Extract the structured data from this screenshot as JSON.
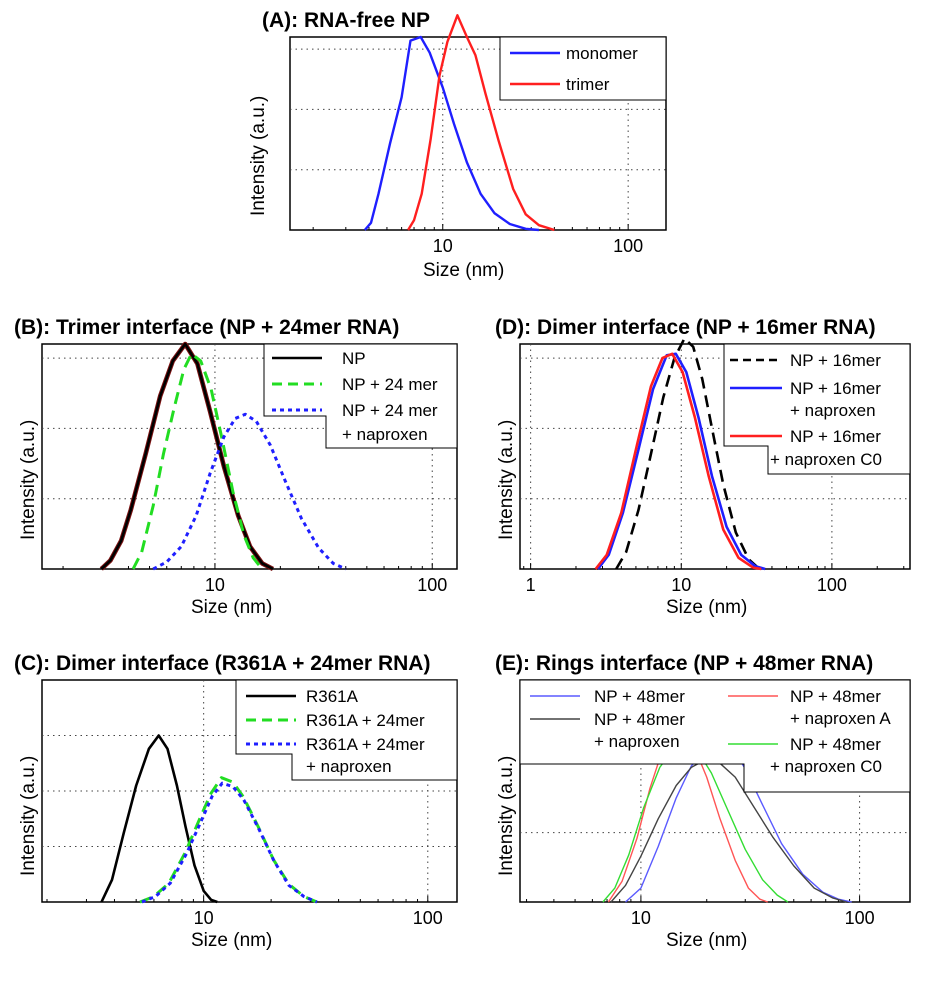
{
  "chart_data": [
    {
      "id": "A",
      "type": "line",
      "title": "(A): RNA-free NP",
      "xlabel": "Size (nm)",
      "ylabel": "Intensity (a.u.)",
      "xscale": "log",
      "xlim": [
        1.5,
        160
      ],
      "ylim": [
        0,
        1.6
      ],
      "xticks": [
        10,
        100
      ],
      "yticks": [
        0.5,
        1.0,
        1.5
      ],
      "legend": "top-right",
      "series": [
        {
          "name": "monomer",
          "color": "#1f1fff",
          "dash": "solid",
          "width": 2.4,
          "points": [
            [
              3.8,
              0
            ],
            [
              4.1,
              0.06
            ],
            [
              4.5,
              0.3
            ],
            [
              5.2,
              0.72
            ],
            [
              6.0,
              1.1
            ],
            [
              6.7,
              1.57
            ],
            [
              7.6,
              1.6
            ],
            [
              8.5,
              1.47
            ],
            [
              10,
              1.18
            ],
            [
              11.5,
              0.88
            ],
            [
              13.5,
              0.56
            ],
            [
              16,
              0.3
            ],
            [
              19,
              0.14
            ],
            [
              23,
              0.05
            ],
            [
              28,
              0.01
            ],
            [
              33,
              0
            ]
          ]
        },
        {
          "name": "trimer",
          "color": "#ff1f1f",
          "dash": "solid",
          "width": 2.4,
          "points": [
            [
              6.5,
              0
            ],
            [
              7.0,
              0.08
            ],
            [
              7.7,
              0.3
            ],
            [
              8.6,
              0.75
            ],
            [
              9.6,
              1.28
            ],
            [
              10.6,
              1.56
            ],
            [
              12,
              1.78
            ],
            [
              13.5,
              1.6
            ],
            [
              15,
              1.45
            ],
            [
              17,
              1.13
            ],
            [
              20,
              0.74
            ],
            [
              24,
              0.34
            ],
            [
              28,
              0.13
            ],
            [
              33,
              0.04
            ],
            [
              40,
              0
            ]
          ]
        }
      ]
    },
    {
      "id": "B",
      "type": "line",
      "title": "(B): Trimer interface (NP + 24mer RNA)",
      "xlabel": "Size (nm)",
      "ylabel": "Intensity (a.u.)",
      "xscale": "log",
      "xlim": [
        1.6,
        130
      ],
      "ylim": [
        0,
        1.6
      ],
      "xticks": [
        10,
        100
      ],
      "yticks": [
        0.5,
        1.0,
        1.5
      ],
      "legend": "top-right",
      "series": [
        {
          "name": "NP",
          "color": "#000000",
          "outline": "#7a1010",
          "dash": "solid",
          "width": 2.6,
          "points": [
            [
              3.0,
              0
            ],
            [
              3.3,
              0.06
            ],
            [
              3.7,
              0.2
            ],
            [
              4.1,
              0.42
            ],
            [
              4.8,
              0.82
            ],
            [
              5.6,
              1.23
            ],
            [
              6.4,
              1.48
            ],
            [
              7.3,
              1.6
            ],
            [
              8.3,
              1.46
            ],
            [
              9.5,
              1.12
            ],
            [
              11,
              0.73
            ],
            [
              12.8,
              0.38
            ],
            [
              14.5,
              0.16
            ],
            [
              16.5,
              0.04
            ],
            [
              18.5,
              0
            ]
          ]
        },
        {
          "name": "NP + 24 mer",
          "color": "#22dd22",
          "dash": "dashed",
          "width": 3,
          "points": [
            [
              4.2,
              0
            ],
            [
              4.6,
              0.12
            ],
            [
              5.2,
              0.45
            ],
            [
              5.8,
              0.82
            ],
            [
              6.5,
              1.15
            ],
            [
              7.2,
              1.42
            ],
            [
              7.8,
              1.53
            ],
            [
              8.6,
              1.48
            ],
            [
              9.6,
              1.28
            ],
            [
              10.8,
              0.92
            ],
            [
              12.1,
              0.55
            ],
            [
              13.6,
              0.24
            ],
            [
              15,
              0.08
            ],
            [
              16.5,
              0
            ]
          ]
        },
        {
          "name": "NP + 24 mer + naproxen",
          "color": "#1f1fff",
          "dash": "dotted",
          "width": 3,
          "points": [
            [
              5.2,
              0
            ],
            [
              6,
              0.05
            ],
            [
              7,
              0.16
            ],
            [
              8.2,
              0.38
            ],
            [
              9.5,
              0.68
            ],
            [
              11,
              0.94
            ],
            [
              12.4,
              1.07
            ],
            [
              13.8,
              1.1
            ],
            [
              15.5,
              1.05
            ],
            [
              18,
              0.88
            ],
            [
              21,
              0.63
            ],
            [
              25,
              0.36
            ],
            [
              30,
              0.15
            ],
            [
              35,
              0.04
            ],
            [
              40,
              0
            ]
          ]
        }
      ]
    },
    {
      "id": "D",
      "type": "line",
      "title": "(D): Dimer interface (NP + 16mer RNA)",
      "xlabel": "Size (nm)",
      "ylabel": "Intensity (a.u.)",
      "xscale": "log",
      "xlim": [
        0.85,
        330
      ],
      "ylim": [
        0,
        1.6
      ],
      "xticks": [
        1,
        10,
        100
      ],
      "yticks": [
        0.5,
        1.0,
        1.5
      ],
      "legend": "top-right",
      "series": [
        {
          "name": "NP + 16mer",
          "color": "#000000",
          "dash": "dashed",
          "width": 2.6,
          "points": [
            [
              3.7,
              0
            ],
            [
              4.3,
              0.12
            ],
            [
              5.2,
              0.42
            ],
            [
              6.3,
              0.82
            ],
            [
              7.6,
              1.22
            ],
            [
              9.0,
              1.5
            ],
            [
              10.5,
              1.64
            ],
            [
              12,
              1.58
            ],
            [
              13.8,
              1.35
            ],
            [
              16,
              1
            ],
            [
              19,
              0.6
            ],
            [
              23,
              0.26
            ],
            [
              28,
              0.07
            ],
            [
              33,
              0
            ]
          ]
        },
        {
          "name": "NP + 16mer + naproxen",
          "color": "#1f1fff",
          "dash": "solid",
          "width": 2.6,
          "points": [
            [
              2.8,
              0
            ],
            [
              3.3,
              0.1
            ],
            [
              4.1,
              0.4
            ],
            [
              5.2,
              0.85
            ],
            [
              6.5,
              1.28
            ],
            [
              8.0,
              1.52
            ],
            [
              9.2,
              1.53
            ],
            [
              10.8,
              1.4
            ],
            [
              13,
              1.08
            ],
            [
              16,
              0.66
            ],
            [
              20,
              0.3
            ],
            [
              25,
              0.1
            ],
            [
              31,
              0.02
            ],
            [
              36,
              0
            ]
          ]
        },
        {
          "name": "NP + 16mer + naproxen C0",
          "color": "#ff1f1f",
          "dash": "solid",
          "width": 2.6,
          "points": [
            [
              2.7,
              0
            ],
            [
              3.2,
              0.1
            ],
            [
              4.0,
              0.4
            ],
            [
              5.0,
              0.85
            ],
            [
              6.3,
              1.3
            ],
            [
              7.5,
              1.5
            ],
            [
              8.7,
              1.53
            ],
            [
              10.2,
              1.4
            ],
            [
              12.3,
              1.08
            ],
            [
              15.2,
              0.66
            ],
            [
              19,
              0.28
            ],
            [
              24,
              0.08
            ],
            [
              30,
              0.01
            ],
            [
              34,
              0
            ]
          ]
        }
      ]
    },
    {
      "id": "C",
      "type": "line",
      "title": "(C): Dimer interface (R361A + 24mer RNA)",
      "xlabel": "Size (nm)",
      "ylabel": "Intensity (a.u.)",
      "xscale": "log",
      "xlim": [
        1.9,
        135
      ],
      "ylim": [
        0,
        2.0
      ],
      "xticks": [
        10,
        100
      ],
      "yticks": [
        0.5,
        1.0,
        1.5
      ],
      "legend": "top-right",
      "series": [
        {
          "name": "R361A",
          "color": "#000000",
          "dash": "solid",
          "width": 2.6,
          "points": [
            [
              3.5,
              0
            ],
            [
              3.9,
              0.2
            ],
            [
              4.4,
              0.62
            ],
            [
              5.0,
              1.05
            ],
            [
              5.7,
              1.38
            ],
            [
              6.3,
              1.5
            ],
            [
              6.9,
              1.38
            ],
            [
              7.6,
              1.05
            ],
            [
              8.3,
              0.68
            ],
            [
              9.1,
              0.33
            ],
            [
              10,
              0.1
            ],
            [
              10.8,
              0.02
            ],
            [
              11.5,
              0
            ]
          ]
        },
        {
          "name": "R361A + 24mer",
          "color": "#22dd22",
          "dash": "dashed",
          "width": 3,
          "points": [
            [
              5.2,
              0
            ],
            [
              6,
              0.05
            ],
            [
              7,
              0.17
            ],
            [
              8.3,
              0.45
            ],
            [
              9.6,
              0.75
            ],
            [
              10.8,
              0.98
            ],
            [
              12,
              1.12
            ],
            [
              13.5,
              1.08
            ],
            [
              15,
              0.95
            ],
            [
              17.5,
              0.68
            ],
            [
              20.5,
              0.38
            ],
            [
              24,
              0.16
            ],
            [
              28,
              0.05
            ],
            [
              32,
              0
            ]
          ]
        },
        {
          "name": "R361A + 24mer + naproxen",
          "color": "#1f1fff",
          "dash": "dotted",
          "width": 3,
          "points": [
            [
              5.3,
              0
            ],
            [
              6.1,
              0.05
            ],
            [
              7.1,
              0.17
            ],
            [
              8.4,
              0.44
            ],
            [
              9.7,
              0.72
            ],
            [
              10.9,
              0.95
            ],
            [
              12.1,
              1.07
            ],
            [
              13.5,
              1.04
            ],
            [
              15.1,
              0.92
            ],
            [
              17.6,
              0.66
            ],
            [
              20.6,
              0.37
            ],
            [
              24,
              0.15
            ],
            [
              28,
              0.05
            ],
            [
              32,
              0
            ]
          ]
        }
      ]
    },
    {
      "id": "E",
      "type": "line",
      "title": "(E): Rings interface (NP + 48mer RNA)",
      "xlabel": "Size (nm)",
      "ylabel": "Intensity (a.u.)",
      "xscale": "log",
      "xlim": [
        2.8,
        170
      ],
      "ylim": [
        0,
        1.6
      ],
      "xticks": [
        10,
        100
      ],
      "yticks": [
        0.5,
        1.0,
        1.5
      ],
      "legend": "top",
      "series": [
        {
          "name": "NP + 48mer",
          "color": "#5a5aff",
          "dash": "solid",
          "width": 1.4,
          "points": [
            [
              8.5,
              0
            ],
            [
              10,
              0.1
            ],
            [
              12,
              0.4
            ],
            [
              14.5,
              0.75
            ],
            [
              17,
              0.98
            ],
            [
              20,
              1.1
            ],
            [
              23,
              1.17
            ],
            [
              26,
              1.12
            ],
            [
              30,
              0.96
            ],
            [
              36,
              0.7
            ],
            [
              44,
              0.42
            ],
            [
              55,
              0.2
            ],
            [
              68,
              0.07
            ],
            [
              80,
              0.02
            ],
            [
              92,
              0
            ]
          ]
        },
        {
          "name": "NP + 48mer + naproxen",
          "color": "#444444",
          "dash": "solid",
          "width": 1.4,
          "points": [
            [
              7.3,
              0
            ],
            [
              8.5,
              0.12
            ],
            [
              10,
              0.33
            ],
            [
              12,
              0.6
            ],
            [
              14.5,
              0.84
            ],
            [
              17,
              0.97
            ],
            [
              20,
              1.03
            ],
            [
              23,
              1.0
            ],
            [
              27,
              0.9
            ],
            [
              33,
              0.68
            ],
            [
              40,
              0.47
            ],
            [
              50,
              0.26
            ],
            [
              62,
              0.1
            ],
            [
              75,
              0.03
            ],
            [
              87,
              0
            ]
          ]
        },
        {
          "name": "NP + 48mer + naproxen A",
          "color": "#ff5555",
          "dash": "solid",
          "width": 1.4,
          "points": [
            [
              7.1,
              0
            ],
            [
              8.2,
              0.15
            ],
            [
              9.6,
              0.46
            ],
            [
              11,
              0.82
            ],
            [
              12.7,
              1.12
            ],
            [
              14.2,
              1.24
            ],
            [
              15.5,
              1.23
            ],
            [
              17.5,
              1.12
            ],
            [
              20,
              0.9
            ],
            [
              23,
              0.6
            ],
            [
              27,
              0.3
            ],
            [
              31,
              0.1
            ],
            [
              35,
              0.02
            ],
            [
              38,
              0
            ]
          ]
        },
        {
          "name": "NP + 48mer + naproxen C0",
          "color": "#33dd33",
          "dash": "solid",
          "width": 1.4,
          "points": [
            [
              6.7,
              0
            ],
            [
              7.6,
              0.1
            ],
            [
              8.8,
              0.34
            ],
            [
              10.3,
              0.68
            ],
            [
              12.2,
              0.97
            ],
            [
              14,
              1.1
            ],
            [
              15.8,
              1.14
            ],
            [
              18,
              1.1
            ],
            [
              21,
              0.93
            ],
            [
              25,
              0.66
            ],
            [
              30,
              0.38
            ],
            [
              36,
              0.16
            ],
            [
              42,
              0.05
            ],
            [
              47,
              0
            ]
          ]
        }
      ]
    }
  ]
}
